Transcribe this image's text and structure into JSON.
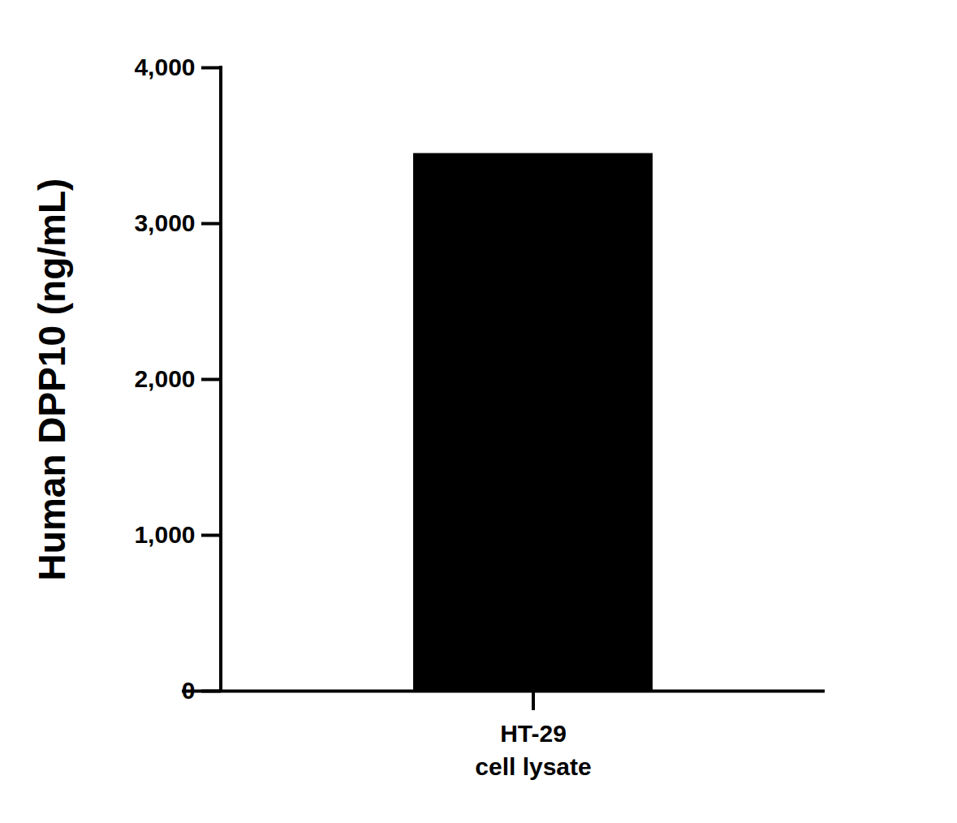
{
  "chart_data": {
    "type": "bar",
    "y_label": "Human DPP10 (ng/mL)",
    "categories": [
      "HT-29\ncell lysate"
    ],
    "values": [
      3450
    ],
    "color": "#000000",
    "ylim": [
      0,
      4000
    ],
    "yticks": [
      0,
      {
        "value": 1000,
        "label": "1,000"
      },
      {
        "value": 2000,
        "label": "2,000"
      },
      {
        "value": 3000,
        "label": "3,000"
      },
      {
        "value": 4000,
        "label": "4,000"
      }
    ],
    "grid": false
  }
}
